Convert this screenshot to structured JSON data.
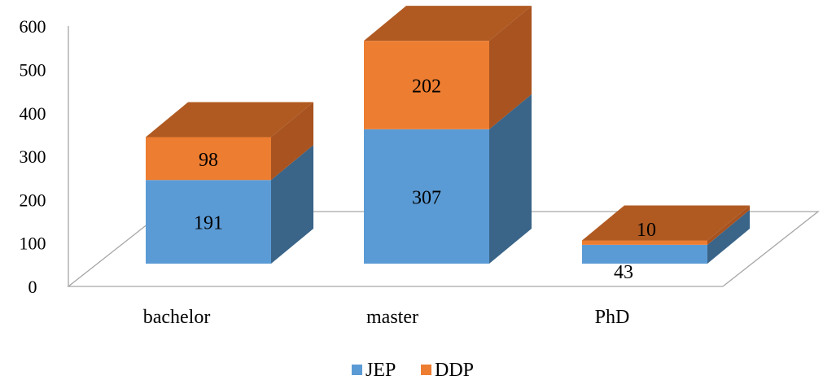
{
  "chart_data": {
    "type": "bar",
    "stacked": true,
    "style": "3d",
    "categories": [
      "bachelor",
      "master",
      "PhD"
    ],
    "series": [
      {
        "name": "JEP",
        "values": [
          191,
          307,
          43
        ],
        "color": "#5B9BD5",
        "side_color": "#3A6488"
      },
      {
        "name": "DDP",
        "values": [
          98,
          202,
          10
        ],
        "color": "#ED7D31",
        "side_color": "#A85320"
      }
    ],
    "ylim": [
      0,
      600
    ],
    "yticks": [
      "0",
      "100",
      "200",
      "300",
      "400",
      "500",
      "600"
    ],
    "legend_position": "bottom",
    "top_color": "#B05A22"
  }
}
